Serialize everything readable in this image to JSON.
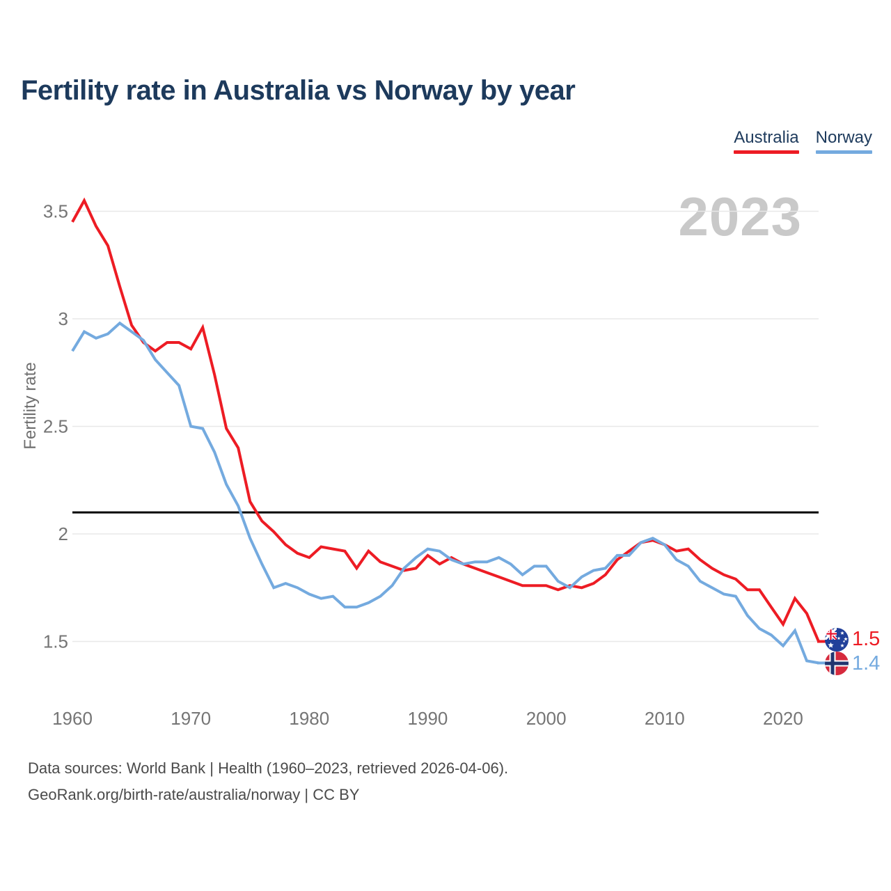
{
  "title": "Fertility rate in Australia vs Norway by year",
  "watermark": "2023",
  "legend": [
    {
      "label": "Australia",
      "color": "#ed1c24"
    },
    {
      "label": "Norway",
      "color": "#74aadf"
    }
  ],
  "footer": {
    "line1": "Data sources: World Bank | Health (1960–2023, retrieved 2026-04-06).",
    "line2": "GeoRank.org/birth-rate/australia/norway | CC BY"
  },
  "colors": {
    "australia_line": "#ed1c24",
    "norway_line": "#74aadf",
    "title_text": "#1d3a5c",
    "axis_text": "#757575",
    "gridline": "#e8e8e8",
    "reference_line": "#000000",
    "watermark_text": "#c9c9c9"
  },
  "chart_data": {
    "type": "line",
    "title": "Fertility rate in Australia vs Norway by year",
    "xlabel": "",
    "ylabel": "Fertility rate",
    "grid": "horizontal",
    "xlim": [
      1960,
      2023
    ],
    "ylim": [
      1.3,
      3.6
    ],
    "x_ticks": [
      1960,
      1970,
      1980,
      1990,
      2000,
      2010,
      2020
    ],
    "y_ticks": [
      1.5,
      2,
      2.5,
      3,
      3.5
    ],
    "y_tick_labels": [
      "1.5",
      "2",
      "2.5",
      "3",
      "3.5"
    ],
    "reference_line_value": 2.1,
    "x": [
      1960,
      1961,
      1962,
      1963,
      1964,
      1965,
      1966,
      1967,
      1968,
      1969,
      1970,
      1971,
      1972,
      1973,
      1974,
      1975,
      1976,
      1977,
      1978,
      1979,
      1980,
      1981,
      1982,
      1983,
      1984,
      1985,
      1986,
      1987,
      1988,
      1989,
      1990,
      1991,
      1992,
      1993,
      1994,
      1995,
      1996,
      1997,
      1998,
      1999,
      2000,
      2001,
      2002,
      2003,
      2004,
      2005,
      2006,
      2007,
      2008,
      2009,
      2010,
      2011,
      2012,
      2013,
      2014,
      2015,
      2016,
      2017,
      2018,
      2019,
      2020,
      2021,
      2022,
      2023
    ],
    "series": [
      {
        "name": "Australia",
        "color": "#ed1c24",
        "flag": "australia",
        "end_label": "1.5",
        "values": [
          3.45,
          3.55,
          3.43,
          3.34,
          3.15,
          2.97,
          2.89,
          2.85,
          2.89,
          2.89,
          2.86,
          2.96,
          2.74,
          2.49,
          2.4,
          2.15,
          2.06,
          2.01,
          1.95,
          1.91,
          1.89,
          1.94,
          1.93,
          1.92,
          1.84,
          1.92,
          1.87,
          1.85,
          1.83,
          1.84,
          1.9,
          1.86,
          1.89,
          1.86,
          1.84,
          1.82,
          1.8,
          1.78,
          1.76,
          1.76,
          1.76,
          1.74,
          1.76,
          1.75,
          1.77,
          1.81,
          1.88,
          1.92,
          1.96,
          1.97,
          1.95,
          1.92,
          1.93,
          1.88,
          1.84,
          1.81,
          1.79,
          1.74,
          1.74,
          1.66,
          1.58,
          1.7,
          1.63,
          1.5
        ]
      },
      {
        "name": "Norway",
        "color": "#74aadf",
        "flag": "norway",
        "end_label": "1.4",
        "values": [
          2.85,
          2.94,
          2.91,
          2.93,
          2.98,
          2.94,
          2.9,
          2.81,
          2.75,
          2.69,
          2.5,
          2.49,
          2.38,
          2.23,
          2.13,
          1.98,
          1.86,
          1.75,
          1.77,
          1.75,
          1.72,
          1.7,
          1.71,
          1.66,
          1.66,
          1.68,
          1.71,
          1.76,
          1.84,
          1.89,
          1.93,
          1.92,
          1.88,
          1.86,
          1.87,
          1.87,
          1.89,
          1.86,
          1.81,
          1.85,
          1.85,
          1.78,
          1.75,
          1.8,
          1.83,
          1.84,
          1.9,
          1.9,
          1.96,
          1.98,
          1.95,
          1.88,
          1.85,
          1.78,
          1.75,
          1.72,
          1.71,
          1.62,
          1.56,
          1.53,
          1.48,
          1.55,
          1.41,
          1.4
        ]
      }
    ],
    "legend_position": "top-right"
  }
}
